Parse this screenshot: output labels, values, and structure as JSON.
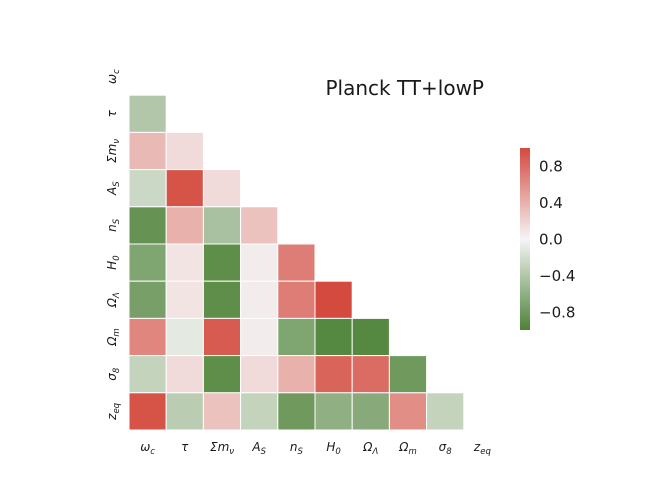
{
  "chart_data": {
    "type": "heatmap",
    "title": "Planck TT+lowP",
    "variables": [
      {
        "base": "ω",
        "sub": "c"
      },
      {
        "base": "τ",
        "sub": ""
      },
      {
        "base": "Σm",
        "sub": "ν"
      },
      {
        "base": "A",
        "sub": "S"
      },
      {
        "base": "n",
        "sub": "S"
      },
      {
        "base": "H",
        "sub": "0"
      },
      {
        "base": "Ω",
        "sub": "Λ"
      },
      {
        "base": "Ω",
        "sub": "m"
      },
      {
        "base": "σ",
        "sub": "8"
      },
      {
        "base": "z",
        "sub": "eq"
      }
    ],
    "lower_triangle_values": [
      [],
      [
        -0.4
      ],
      [
        0.35,
        0.15
      ],
      [
        -0.25,
        0.95,
        0.15
      ],
      [
        -0.85,
        0.4,
        -0.45,
        0.3
      ],
      [
        -0.7,
        0.1,
        -0.9,
        0.05,
        0.7
      ],
      [
        -0.75,
        0.1,
        -0.9,
        0.05,
        0.7,
        1.0
      ],
      [
        0.65,
        -0.1,
        0.9,
        0.05,
        -0.7,
        -0.95,
        -0.95
      ],
      [
        -0.3,
        0.15,
        -0.9,
        0.15,
        0.4,
        0.85,
        0.8,
        -0.8
      ],
      [
        0.95,
        -0.35,
        0.3,
        -0.3,
        -0.8,
        -0.6,
        -0.65,
        0.6,
        -0.3
      ]
    ],
    "colorbar": {
      "ticks": [
        0.8,
        0.4,
        0.0,
        -0.4,
        -0.8
      ],
      "tick_labels": [
        "0.8",
        "0.4",
        "0.0",
        "−0.4",
        "−0.8"
      ],
      "vmin": -1.0,
      "vmax": 1.0
    },
    "colors": {
      "positive": "#d44a3e",
      "negative": "#4d8237",
      "neutral": "#f5f5f5"
    }
  }
}
